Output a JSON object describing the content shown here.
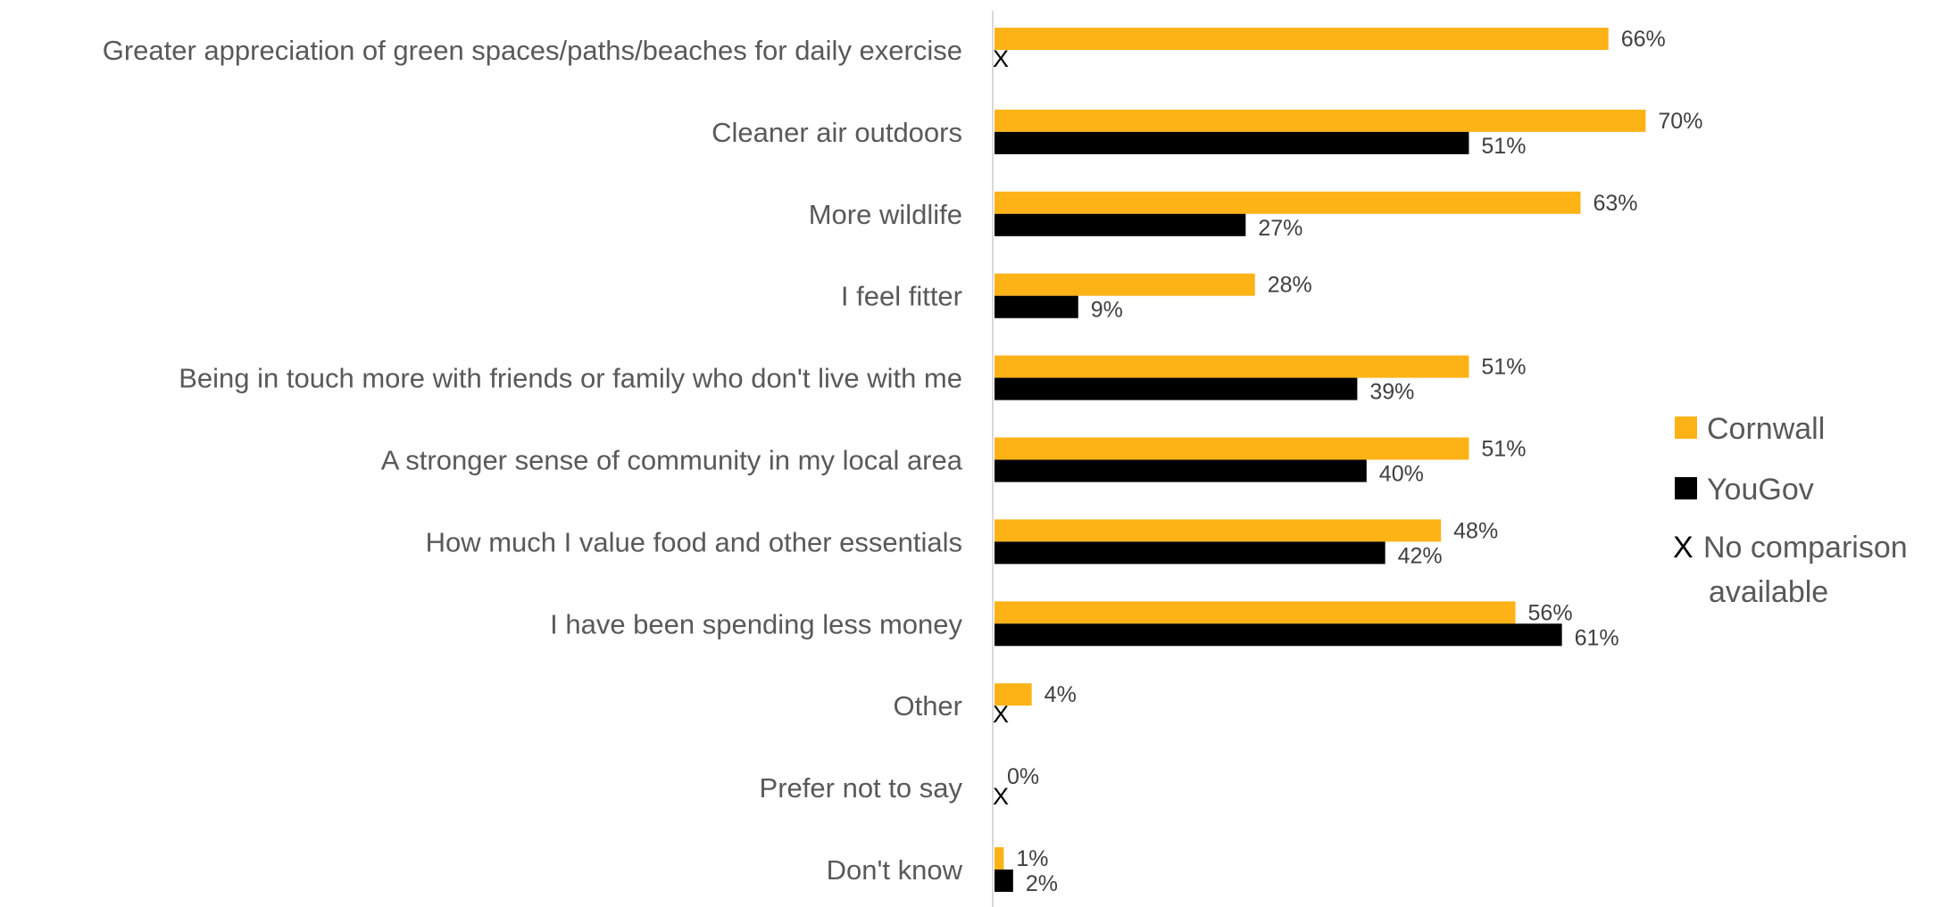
{
  "chart_data": {
    "type": "bar",
    "orientation": "horizontal",
    "categories": [
      "Greater appreciation of green spaces/paths/beaches for daily exercise",
      "Cleaner air outdoors",
      "More wildlife",
      "I feel fitter",
      "Being in touch more with friends or family who don't live with me",
      "A stronger sense of community in my local area",
      "How much I value food and other essentials",
      "I have been spending less money",
      "Other",
      "Prefer not to say",
      "Don't know"
    ],
    "series": [
      {
        "name": "Cornwall",
        "color": "#FDB216",
        "values": [
          66,
          70,
          63,
          28,
          51,
          51,
          48,
          56,
          4,
          0,
          1
        ],
        "labels": [
          "66%",
          "70%",
          "63%",
          "28%",
          "51%",
          "51%",
          "48%",
          "56%",
          "4%",
          "0%",
          "1%"
        ]
      },
      {
        "name": "YouGov",
        "color": "#000000",
        "values": [
          null,
          51,
          27,
          9,
          39,
          40,
          42,
          61,
          null,
          null,
          2
        ],
        "labels": [
          "",
          "51%",
          "27%",
          "9%",
          "39%",
          "40%",
          "42%",
          "61%",
          "",
          "",
          "2%"
        ]
      }
    ],
    "no_comparison_marker": "X",
    "xlim": [
      0,
      100
    ],
    "grid": false,
    "legend_position": "right",
    "legend": {
      "items": [
        {
          "label": "Cornwall",
          "color": "#FDB216"
        },
        {
          "label": "YouGov",
          "color": "#000000"
        }
      ],
      "no_comparison": {
        "marker": "X",
        "label_line1": "No comparison",
        "label_line2": "available"
      }
    }
  }
}
